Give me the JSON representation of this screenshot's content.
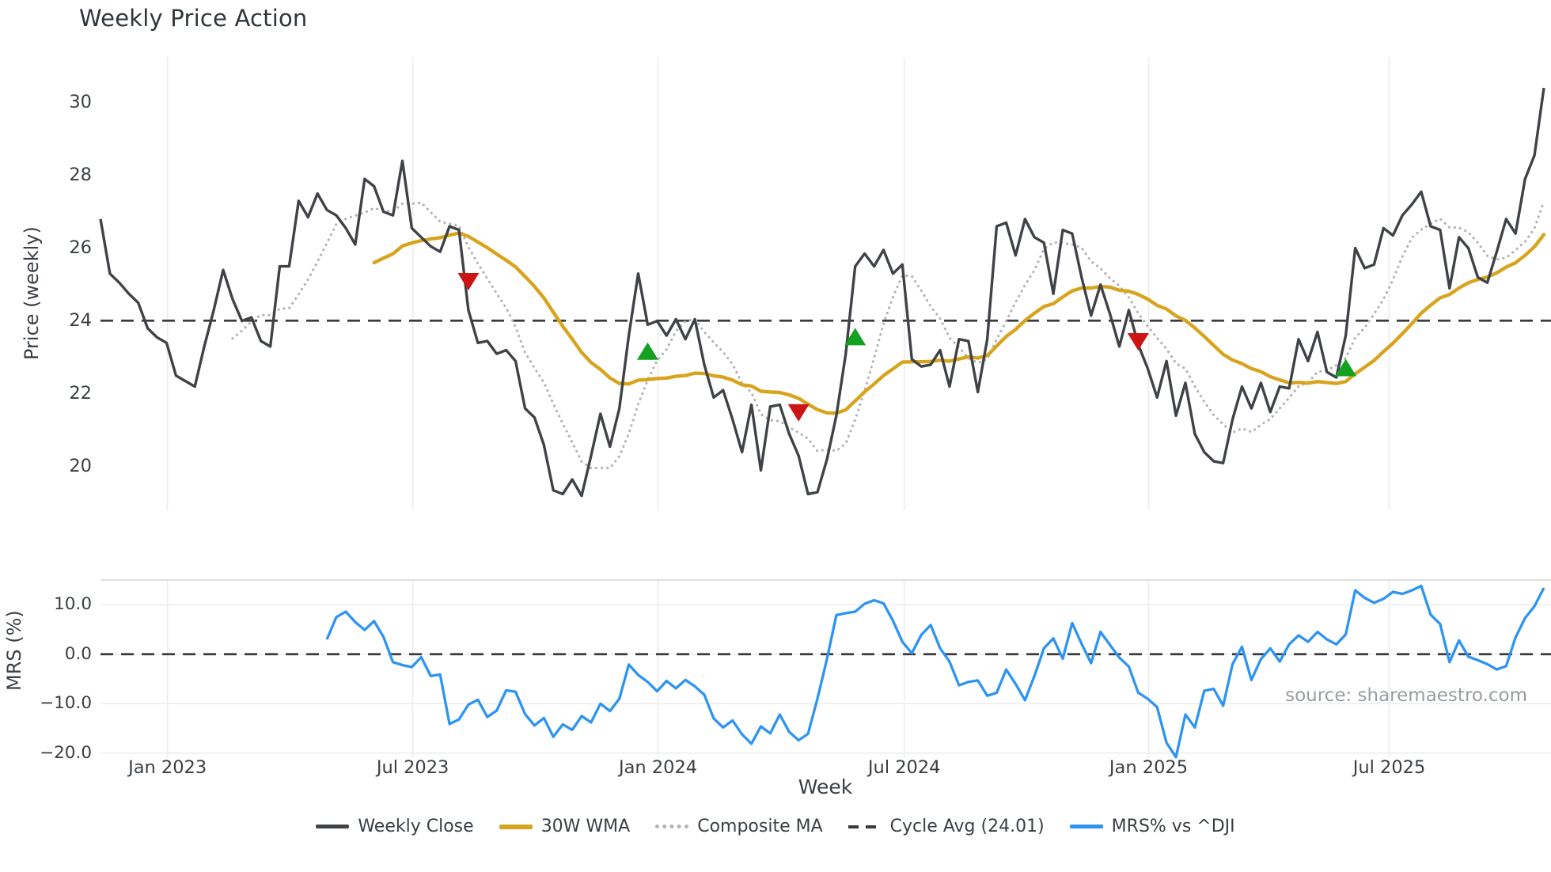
{
  "title": "Weekly Price Action",
  "source_note": "source: sharemaestro.com",
  "colors": {
    "weekly_close": "#3f4246",
    "wma_30w": "#d8a41e",
    "composite_ma": "#b4b4b4",
    "cycle_avg": "#3a3a3a",
    "mrs": "#2d94f2",
    "buy_marker": "#14a120",
    "sell_marker": "#cc1414",
    "gridline": "#ececec",
    "panel_border": "#d9d9d9",
    "text": "#3a3f44"
  },
  "legend": {
    "items": [
      {
        "label": "Weekly Close",
        "swatch": "close"
      },
      {
        "label": "30W WMA",
        "swatch": "wma"
      },
      {
        "label": "Composite MA",
        "swatch": "composite"
      },
      {
        "label": "Cycle Avg (24.01)",
        "swatch": "cycle"
      },
      {
        "label": "MRS% vs ^DJI",
        "swatch": "mrs"
      }
    ]
  },
  "axes": {
    "main": {
      "ylabel": "Price (weekly)",
      "yticks": [
        {
          "v": 20,
          "label": "20"
        },
        {
          "v": 22,
          "label": "22"
        },
        {
          "v": 24,
          "label": "24"
        },
        {
          "v": 26,
          "label": "26"
        },
        {
          "v": 28,
          "label": "28"
        },
        {
          "v": 30,
          "label": "30"
        }
      ]
    },
    "sub": {
      "ylabel": "MRS (%)",
      "yticks": [
        {
          "v": 10,
          "label": "10.0"
        },
        {
          "v": 0,
          "label": "0.0"
        },
        {
          "v": -10,
          "label": "−10.0"
        },
        {
          "v": -20,
          "label": "−20.0"
        }
      ]
    },
    "x": {
      "label": "Week",
      "ticks": [
        {
          "i": 7.1,
          "label": "Jan 2023"
        },
        {
          "i": 33.1,
          "label": "Jul 2023"
        },
        {
          "i": 59.1,
          "label": "Jan 2024"
        },
        {
          "i": 85.2,
          "label": "Jul 2024"
        },
        {
          "i": 111.1,
          "label": "Jan 2025"
        },
        {
          "i": 136.6,
          "label": "Jul 2025"
        }
      ]
    }
  },
  "chart_data": [
    {
      "type": "line",
      "panel": "main",
      "title": "Weekly Price Action",
      "ylabel": "Price (weekly)",
      "ylim": [
        18.8,
        31.25
      ],
      "x_unit": "weeks, Nov 2022 through Oct 2025",
      "grid": "vertical-only",
      "series": [
        {
          "name": "Weekly Close",
          "style": "solid dark line",
          "values": [
            26.8,
            25.3,
            25.05,
            24.75,
            24.5,
            23.8,
            23.55,
            23.4,
            22.5,
            22.35,
            22.2,
            23.3,
            24.3,
            25.4,
            24.6,
            24.0,
            24.1,
            23.45,
            23.3,
            25.5,
            25.5,
            27.3,
            26.85,
            27.5,
            27.05,
            26.9,
            26.55,
            26.1,
            27.9,
            27.7,
            27.0,
            26.9,
            28.4,
            26.55,
            26.3,
            26.05,
            25.9,
            26.6,
            26.5,
            24.3,
            23.4,
            23.45,
            23.1,
            23.2,
            22.9,
            21.6,
            21.35,
            20.6,
            19.35,
            19.25,
            19.65,
            19.2,
            20.3,
            21.45,
            20.55,
            21.6,
            23.6,
            25.3,
            23.9,
            24.0,
            23.6,
            24.05,
            23.5,
            24.05,
            22.8,
            21.9,
            22.1,
            21.3,
            20.4,
            21.7,
            19.9,
            21.65,
            21.7,
            20.9,
            20.3,
            19.25,
            19.3,
            20.2,
            21.4,
            23.1,
            25.5,
            25.85,
            25.5,
            25.95,
            25.3,
            25.55,
            22.95,
            22.75,
            22.8,
            23.2,
            22.2,
            23.5,
            23.45,
            22.05,
            23.5,
            26.6,
            26.7,
            25.8,
            26.8,
            26.3,
            26.15,
            24.75,
            26.5,
            26.4,
            25.2,
            24.15,
            25.0,
            24.2,
            23.3,
            24.3,
            23.35,
            22.7,
            21.9,
            22.9,
            21.4,
            22.3,
            20.9,
            20.4,
            20.15,
            20.1,
            21.3,
            22.2,
            21.6,
            22.3,
            21.5,
            22.2,
            22.15,
            23.5,
            22.9,
            23.7,
            22.6,
            22.45,
            23.6,
            26.0,
            25.45,
            25.55,
            26.55,
            26.35,
            26.9,
            27.2,
            27.55,
            26.6,
            26.5,
            24.9,
            26.3,
            26.0,
            25.2,
            25.05,
            25.9,
            26.8,
            26.4,
            27.9,
            28.55,
            30.4
          ]
        },
        {
          "name": "30W WMA",
          "style": "solid gold line",
          "derived": "linear-weighted moving average of Weekly Close, window 30, drawn from week 29"
        },
        {
          "name": "Composite MA",
          "style": "dotted gray line",
          "derived": "simple moving average of Weekly Close, window 7, drawn from week 14"
        },
        {
          "name": "Cycle Avg",
          "style": "horizontal dashed line",
          "value": 24.01
        }
      ],
      "buy_signals": [
        {
          "week": 58,
          "price": 23.15
        },
        {
          "week": 80,
          "price": 23.55
        },
        {
          "week": 132,
          "price": 22.7
        }
      ],
      "sell_signals": [
        {
          "week": 39,
          "price": 25.1
        },
        {
          "week": 74,
          "price": 21.5
        },
        {
          "week": 110,
          "price": 23.45
        }
      ]
    },
    {
      "type": "line",
      "panel": "sub",
      "ylabel": "MRS (%)",
      "ylim": [
        -21,
        15
      ],
      "grid": "horizontal-and-vertical",
      "series": [
        {
          "name": "MRS% vs ^DJI",
          "style": "solid blue line",
          "start_index": 24,
          "values": [
            3.0,
            7.5,
            8.6,
            6.5,
            4.9,
            6.7,
            3.5,
            -1.6,
            -2.2,
            -2.6,
            -0.6,
            -4.4,
            -4.1,
            -14.1,
            -13.2,
            -10.2,
            -9.2,
            -12.7,
            -11.4,
            -7.3,
            -7.6,
            -12.1,
            -14.4,
            -12.9,
            -16.7,
            -14.2,
            -15.3,
            -12.5,
            -13.8,
            -10.0,
            -11.5,
            -9.0,
            -2.1,
            -4.2,
            -5.6,
            -7.5,
            -5.4,
            -6.9,
            -5.2,
            -6.5,
            -8.2,
            -13.0,
            -14.8,
            -13.4,
            -16.2,
            -18.1,
            -14.6,
            -16.0,
            -12.2,
            -15.7,
            -17.4,
            -16.1,
            -9.0,
            -1.0,
            7.9,
            8.3,
            8.6,
            10.2,
            10.9,
            10.3,
            6.8,
            2.5,
            0.2,
            3.9,
            5.9,
            1.2,
            -1.5,
            -6.3,
            -5.6,
            -5.3,
            -8.4,
            -7.8,
            -3.1,
            -6.0,
            -9.3,
            -4.4,
            1.2,
            3.2,
            -0.9,
            6.3,
            2.1,
            -1.8,
            4.5,
            1.9,
            -0.7,
            -2.5,
            -7.8,
            -9.0,
            -10.7,
            -17.9,
            -20.8,
            -12.2,
            -14.8,
            -7.4,
            -7.0,
            -10.4,
            -2.0,
            1.5,
            -5.2,
            -1.0,
            1.2,
            -1.5,
            2.0,
            3.8,
            2.5,
            4.5,
            3.0,
            2.0,
            4.0,
            12.9,
            11.4,
            10.4,
            11.2,
            12.6,
            12.2,
            12.9,
            13.8,
            8.0,
            6.1,
            -1.6,
            2.8,
            -0.5,
            -1.2,
            -2.0,
            -3.1,
            -2.4,
            3.4,
            7.3,
            9.7,
            13.4
          ]
        },
        {
          "name": "Zero line",
          "style": "horizontal dashed line",
          "value": 0.0
        }
      ]
    }
  ]
}
